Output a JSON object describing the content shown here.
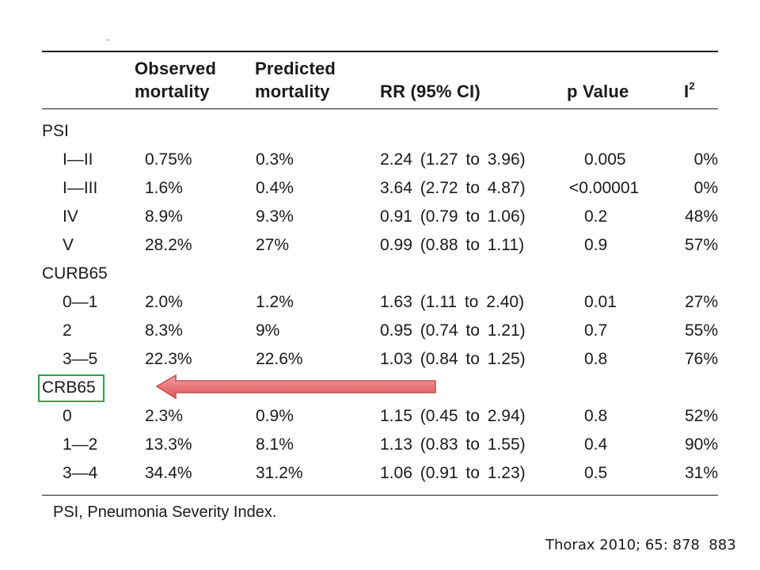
{
  "table": {
    "headers": {
      "observed_line1": "Observed",
      "observed_line2": "mortality",
      "predicted_line1": "Predicted",
      "predicted_line2": "mortality",
      "rr": "RR (95% CI)",
      "p": "p Value",
      "i2_base": "I",
      "i2_sup": "2"
    },
    "groups": [
      {
        "label": "PSI",
        "rows": [
          {
            "class": "I—II",
            "observed": "0.75%",
            "predicted": "0.3%",
            "rr": "2.24 (1.27 to 3.96)",
            "p": "0.005",
            "i2": "0%"
          },
          {
            "class": "I—III",
            "observed": "1.6%",
            "predicted": "0.4%",
            "rr": "3.64 (2.72 to 4.87)",
            "p": "<0.00001",
            "i2": "0%"
          },
          {
            "class": "IV",
            "observed": "8.9%",
            "predicted": "9.3%",
            "rr": "0.91 (0.79 to 1.06)",
            "p": "0.2",
            "i2": "48%"
          },
          {
            "class": "V",
            "observed": "28.2%",
            "predicted": "27%",
            "rr": "0.99 (0.88 to 1.11)",
            "p": "0.9",
            "i2": "57%"
          }
        ]
      },
      {
        "label": "CURB65",
        "rows": [
          {
            "class": "0—1",
            "observed": "2.0%",
            "predicted": "1.2%",
            "rr": "1.63 (1.11 to 2.40)",
            "p": "0.01",
            "i2": "27%"
          },
          {
            "class": "2",
            "observed": "8.3%",
            "predicted": "9%",
            "rr": "0.95 (0.74 to 1.21)",
            "p": "0.7",
            "i2": "55%"
          },
          {
            "class": "3—5",
            "observed": "22.3%",
            "predicted": "22.6%",
            "rr": "1.03 (0.84 to 1.25)",
            "p": "0.8",
            "i2": "76%"
          }
        ]
      },
      {
        "label": "CRB65",
        "rows": [
          {
            "class": "0",
            "observed": "2.3%",
            "predicted": "0.9%",
            "rr": "1.15 (0.45 to 2.94)",
            "p": "0.8",
            "i2": "52%"
          },
          {
            "class": "1—2",
            "observed": "13.3%",
            "predicted": "8.1%",
            "rr": "1.13 (0.83 to 1.55)",
            "p": "0.4",
            "i2": "90%"
          },
          {
            "class": "3—4",
            "observed": "34.4%",
            "predicted": "31.2%",
            "rr": "1.06 (0.91 to 1.23)",
            "p": "0.5",
            "i2": "31%"
          }
        ]
      }
    ],
    "footnote": "PSI, Pneumonia Severity Index."
  },
  "annotation": {
    "highlight_color": "#1fa84a",
    "arrow_fill": "#e8787c",
    "arrow_stroke": "#c0504d"
  },
  "citation": "Thorax 2010; 65: 878  883"
}
